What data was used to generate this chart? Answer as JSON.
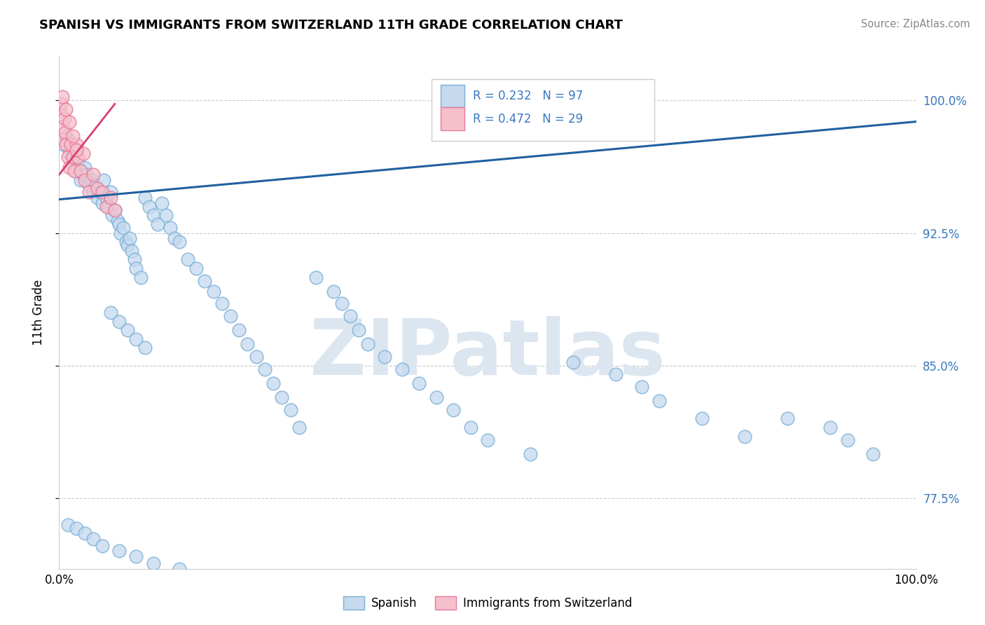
{
  "title": "SPANISH VS IMMIGRANTS FROM SWITZERLAND 11TH GRADE CORRELATION CHART",
  "source": "Source: ZipAtlas.com",
  "ylabel": "11th Grade",
  "xlim": [
    0.0,
    1.0
  ],
  "ylim": [
    0.735,
    1.025
  ],
  "legend_label_blue": "Spanish",
  "legend_label_pink": "Immigrants from Switzerland",
  "R_blue": 0.232,
  "N_blue": 97,
  "R_pink": 0.472,
  "N_pink": 29,
  "blue_face_color": "#c5d9ef",
  "blue_edge_color": "#7aafd4",
  "blue_line_color": "#2060a0",
  "pink_face_color": "#f5c0cc",
  "pink_edge_color": "#e87898",
  "pink_line_color": "#d84070",
  "watermark_color": "#dce6f0",
  "grid_color": "#cccccc",
  "right_tick_color": "#3878c0",
  "blue_x": [
    0.005,
    0.008,
    0.01,
    0.012,
    0.015,
    0.018,
    0.02,
    0.022,
    0.025,
    0.028,
    0.03,
    0.032,
    0.035,
    0.038,
    0.04,
    0.042,
    0.045,
    0.048,
    0.05,
    0.052,
    0.055,
    0.058,
    0.06,
    0.062,
    0.065,
    0.068,
    0.07,
    0.072,
    0.075,
    0.078,
    0.08,
    0.082,
    0.085,
    0.088,
    0.09,
    0.095,
    0.1,
    0.105,
    0.11,
    0.115,
    0.12,
    0.125,
    0.13,
    0.135,
    0.14,
    0.06,
    0.07,
    0.08,
    0.09,
    0.1,
    0.15,
    0.16,
    0.17,
    0.18,
    0.19,
    0.2,
    0.21,
    0.22,
    0.23,
    0.24,
    0.25,
    0.26,
    0.27,
    0.28,
    0.3,
    0.32,
    0.33,
    0.34,
    0.35,
    0.36,
    0.38,
    0.4,
    0.42,
    0.44,
    0.46,
    0.48,
    0.5,
    0.55,
    0.6,
    0.65,
    0.68,
    0.7,
    0.75,
    0.8,
    0.85,
    0.9,
    0.92,
    0.95,
    0.01,
    0.02,
    0.03,
    0.04,
    0.05,
    0.07,
    0.09,
    0.11,
    0.14
  ],
  "blue_y": [
    0.975,
    0.98,
    0.978,
    0.97,
    0.968,
    0.972,
    0.96,
    0.965,
    0.955,
    0.958,
    0.962,
    0.958,
    0.952,
    0.955,
    0.948,
    0.952,
    0.945,
    0.948,
    0.942,
    0.955,
    0.945,
    0.94,
    0.948,
    0.935,
    0.938,
    0.932,
    0.93,
    0.925,
    0.928,
    0.92,
    0.918,
    0.922,
    0.915,
    0.91,
    0.905,
    0.9,
    0.945,
    0.94,
    0.935,
    0.93,
    0.942,
    0.935,
    0.928,
    0.922,
    0.92,
    0.88,
    0.875,
    0.87,
    0.865,
    0.86,
    0.91,
    0.905,
    0.898,
    0.892,
    0.885,
    0.878,
    0.87,
    0.862,
    0.855,
    0.848,
    0.84,
    0.832,
    0.825,
    0.815,
    0.9,
    0.892,
    0.885,
    0.878,
    0.87,
    0.862,
    0.855,
    0.848,
    0.84,
    0.832,
    0.825,
    0.815,
    0.808,
    0.8,
    0.852,
    0.845,
    0.838,
    0.83,
    0.82,
    0.81,
    0.82,
    0.815,
    0.808,
    0.8,
    0.76,
    0.758,
    0.755,
    0.752,
    0.748,
    0.745,
    0.742,
    0.738,
    0.735
  ],
  "pink_x": [
    0.002,
    0.003,
    0.004,
    0.005,
    0.006,
    0.007,
    0.008,
    0.01,
    0.012,
    0.014,
    0.016,
    0.018,
    0.02,
    0.022,
    0.025,
    0.028,
    0.03,
    0.035,
    0.04,
    0.045,
    0.05,
    0.055,
    0.06,
    0.065,
    0.004,
    0.008,
    0.012,
    0.016,
    0.02
  ],
  "pink_y": [
    0.998,
    0.992,
    0.985,
    0.978,
    0.99,
    0.982,
    0.975,
    0.968,
    0.962,
    0.975,
    0.968,
    0.96,
    0.975,
    0.968,
    0.96,
    0.97,
    0.955,
    0.948,
    0.958,
    0.95,
    0.948,
    0.94,
    0.945,
    0.938,
    1.002,
    0.995,
    0.988,
    0.98,
    0.972
  ],
  "blue_trend": [
    0.0,
    1.0,
    0.944,
    0.988
  ],
  "pink_trend": [
    0.0,
    0.065,
    0.958,
    0.998
  ],
  "yticks": [
    1.0,
    0.925,
    0.85,
    0.775
  ],
  "ytick_labels": [
    "100.0%",
    "92.5%",
    "85.0%",
    "77.5%"
  ]
}
